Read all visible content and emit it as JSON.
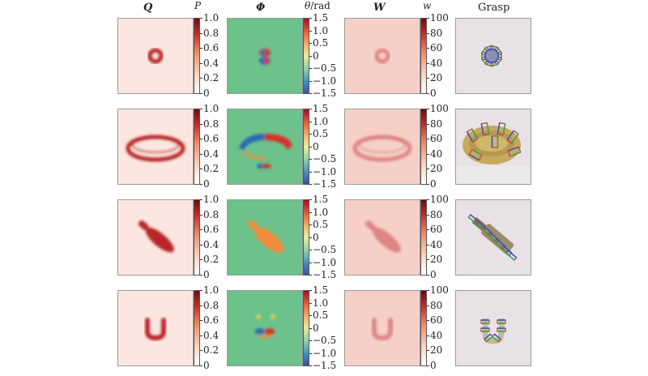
{
  "headers": {
    "q": "Q",
    "phi": "Φ",
    "w": "W",
    "grasp": "Grasp"
  },
  "colorbar_titles": {
    "p": "P",
    "theta": "θ",
    "theta_unit": "/rad",
    "w": "w"
  },
  "ticks": {
    "p": [
      "1.0",
      "0.8",
      "0.6",
      "0.4",
      "0.2",
      "0"
    ],
    "theta": [
      "1.5",
      "1.0",
      "0.5",
      "0",
      "−0.5",
      "−1.0",
      "−1.5"
    ],
    "w": [
      "100",
      "80",
      "60",
      "40",
      "20",
      "0"
    ]
  },
  "colors": {
    "q_background": "#fbe7e0",
    "q_object": "#b8282c",
    "phi_background": "#6cc28a",
    "phi_positive": "#d7302a",
    "phi_negative": "#2c6bb3",
    "w_background": "#f6d0c8",
    "w_object": "#d46e6e",
    "grasp_background": "#e8e2e6",
    "grasp_box_red": "#d6303a",
    "grasp_box_blue": "#2d5fb8",
    "grasp_box_green": "#3ba060"
  },
  "rows": [
    {
      "object": "ring"
    },
    {
      "object": "basket"
    },
    {
      "object": "brush"
    },
    {
      "object": "u-shape"
    }
  ]
}
